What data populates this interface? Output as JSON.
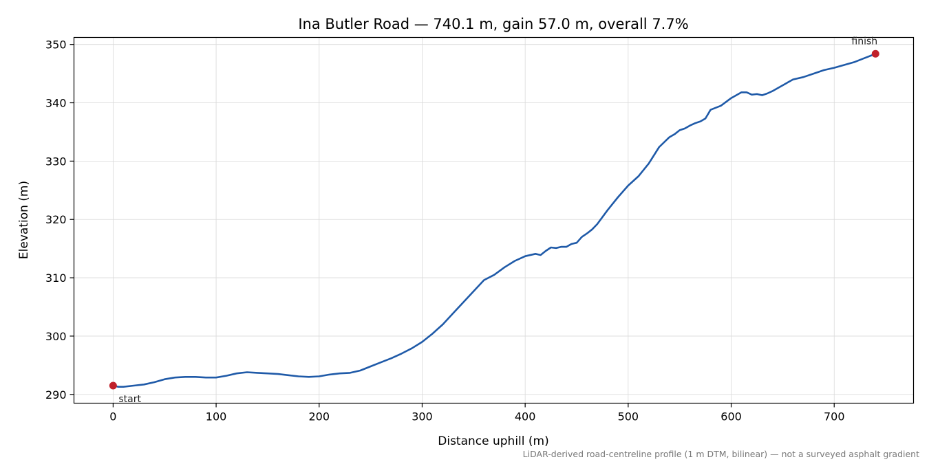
{
  "chart_data": {
    "type": "line",
    "title": "Ina Butler Road — 740.1 m, gain 57.0 m, overall 7.7%",
    "xlabel": "Distance uphill (m)",
    "ylabel": "Elevation (m)",
    "xlim": [
      -38,
      777
    ],
    "ylim": [
      288.5,
      351.2
    ],
    "xticks": [
      0,
      100,
      200,
      300,
      400,
      500,
      600,
      700
    ],
    "yticks": [
      290,
      300,
      310,
      320,
      330,
      340,
      350
    ],
    "grid": true,
    "line_color": "#1f5aa8",
    "marker_color": "#c0202a",
    "series": [
      {
        "x": [
          0,
          5,
          10,
          20,
          30,
          40,
          50,
          60,
          70,
          80,
          90,
          100,
          110,
          120,
          130,
          140,
          150,
          160,
          170,
          180,
          190,
          200,
          210,
          220,
          230,
          240,
          250,
          260,
          270,
          280,
          290,
          300,
          310,
          320,
          330,
          340,
          350,
          360,
          370,
          380,
          390,
          400,
          410,
          415,
          420,
          425,
          430,
          435,
          440,
          445,
          450,
          455,
          460,
          465,
          470,
          480,
          490,
          500,
          510,
          520,
          530,
          540,
          545,
          550,
          555,
          560,
          565,
          570,
          575,
          580,
          590,
          600,
          610,
          615,
          620,
          625,
          630,
          635,
          640,
          650,
          660,
          670,
          680,
          690,
          700,
          710,
          720,
          730,
          740.1
        ],
        "y": [
          291.5,
          291.3,
          291.3,
          291.5,
          291.7,
          292.1,
          292.6,
          292.9,
          293.0,
          293.0,
          292.9,
          292.9,
          293.2,
          293.6,
          293.8,
          293.7,
          293.6,
          293.5,
          293.3,
          293.1,
          293.0,
          293.1,
          293.4,
          293.6,
          293.7,
          294.1,
          294.8,
          295.5,
          296.2,
          297.0,
          297.9,
          299.0,
          300.4,
          302.0,
          303.9,
          305.8,
          307.7,
          309.6,
          310.5,
          311.8,
          312.9,
          313.7,
          314.1,
          313.9,
          314.6,
          315.2,
          315.1,
          315.3,
          315.3,
          315.8,
          316.0,
          317.0,
          317.6,
          318.3,
          319.2,
          321.6,
          323.8,
          325.8,
          327.4,
          329.6,
          332.4,
          334.1,
          334.6,
          335.3,
          335.6,
          336.1,
          336.5,
          336.8,
          337.3,
          338.8,
          339.5,
          340.8,
          341.8,
          341.8,
          341.4,
          341.5,
          341.3,
          341.6,
          342.0,
          343.0,
          344.0,
          344.4,
          345.0,
          345.6,
          346.0,
          346.5,
          347.0,
          347.7,
          348.4
        ]
      }
    ],
    "annotations": [
      {
        "text": "start",
        "x": 0,
        "y": 291.5
      },
      {
        "text": "finish",
        "x": 740.1,
        "y": 348.4
      }
    ],
    "footnote": "LiDAR-derived road-centreline profile (1 m DTM, bilinear) — not a surveyed asphalt gradient"
  }
}
